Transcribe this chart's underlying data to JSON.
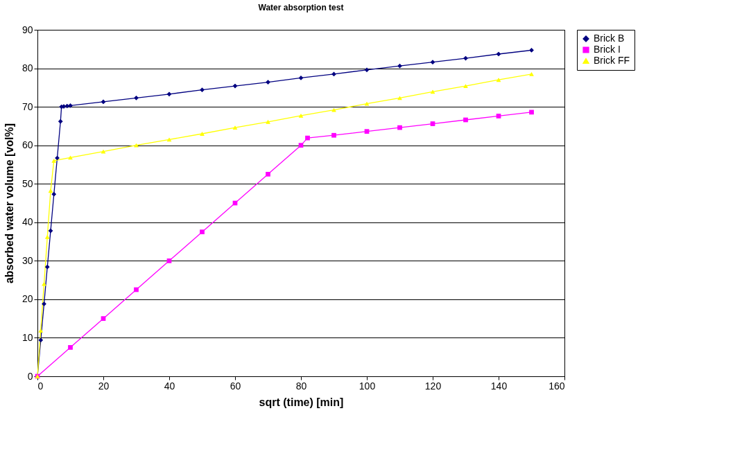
{
  "chart_data": {
    "type": "line",
    "title": "Water absorption test",
    "xlabel": "sqrt (time) [min]",
    "ylabel": "absorbed water volume [vol%]",
    "xlim": [
      0,
      160
    ],
    "xticks": [
      0,
      20,
      40,
      60,
      80,
      100,
      120,
      140,
      160
    ],
    "ylim": [
      0,
      90
    ],
    "yticks": [
      0,
      10,
      20,
      30,
      40,
      50,
      60,
      70,
      80,
      90
    ],
    "grid": "y",
    "legend": "right",
    "series": [
      {
        "name": "Brick B",
        "color": "#000080",
        "marker": "diamond",
        "x": [
          0,
          1,
          2,
          3,
          4,
          5,
          6,
          7,
          7.3,
          8,
          9,
          10,
          20,
          30,
          40,
          50,
          60,
          70,
          80,
          90,
          100,
          110,
          120,
          130,
          140,
          150
        ],
        "values": [
          0,
          9.4,
          18.8,
          28.4,
          37.8,
          47.3,
          56.7,
          66.2,
          70,
          70.1,
          70.2,
          70.3,
          71.3,
          72.3,
          73.3,
          74.4,
          75.4,
          76.4,
          77.5,
          78.5,
          79.6,
          80.6,
          81.6,
          82.6,
          83.7,
          84.7
        ]
      },
      {
        "name": "Brick I",
        "color": "#ff00ff",
        "marker": "square",
        "x": [
          0,
          10,
          20,
          30,
          40,
          50,
          60,
          70,
          80,
          82,
          90,
          100,
          110,
          120,
          130,
          140,
          150
        ],
        "values": [
          0,
          7.5,
          15,
          22.5,
          30,
          37.5,
          45,
          52.5,
          60,
          61.9,
          62.6,
          63.6,
          64.6,
          65.6,
          66.6,
          67.6,
          68.6
        ]
      },
      {
        "name": "Brick FF",
        "color": "#ffff00",
        "marker": "triangle",
        "x": [
          0,
          1,
          2,
          3,
          4,
          5,
          10,
          20,
          30,
          40,
          50,
          60,
          70,
          80,
          90,
          100,
          110,
          120,
          130,
          140,
          150
        ],
        "values": [
          0,
          11.9,
          24,
          36.2,
          48.2,
          56,
          56.8,
          58.4,
          60,
          61.5,
          63.0,
          64.6,
          66.1,
          67.7,
          69.2,
          70.8,
          72.3,
          73.9,
          75.4,
          77.0,
          78.5
        ]
      }
    ]
  }
}
